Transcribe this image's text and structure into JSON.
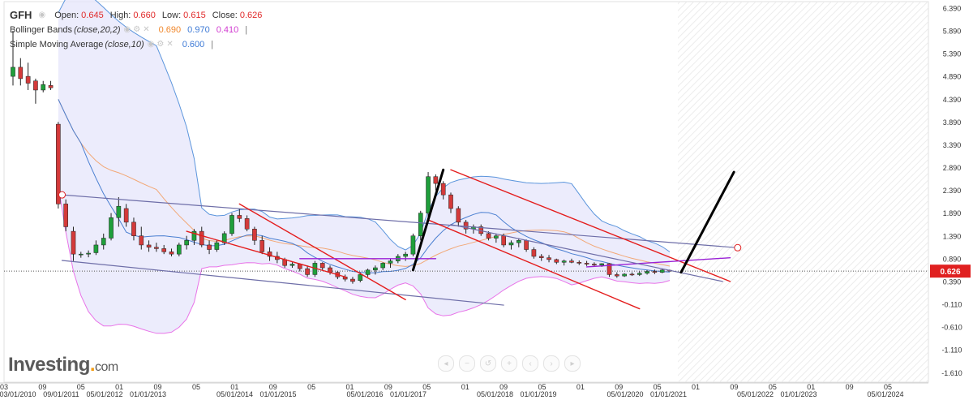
{
  "legend": {
    "ticker": "GFH",
    "open_label": "Open:",
    "open": "0.645",
    "high_label": "High:",
    "high": "0.660",
    "low_label": "Low:",
    "low": "0.615",
    "close_label": "Close:",
    "close": "0.626",
    "bb_name": "Bollinger Bands",
    "bb_params": "(close,20,2)",
    "bb_mid": "0.690",
    "bb_upper": "0.970",
    "bb_lower": "0.410",
    "sma_name": "Simple Moving Average",
    "sma_params": "(close,10)",
    "sma_value": "0.600",
    "pipe": "|"
  },
  "logo": {
    "text": "Investing",
    "dot": ".",
    "suffix": "com"
  },
  "price_badge": "0.626",
  "nav_icons": [
    "arrow-left-icon",
    "zoom-out-icon",
    "reset-icon",
    "zoom-in-icon",
    "scroll-left-icon",
    "scroll-right-icon",
    "arrow-right-icon"
  ],
  "colors": {
    "up": "#1f9f3b",
    "down": "#d43a3a",
    "bb_band": "#5b95dc",
    "bb_fill": "#e6e6fb",
    "bb_mid": "#f2a877",
    "bb_lower_right": "#e873e8",
    "sma": "#4a7fd1",
    "red_channel": "#e41d1d",
    "grey_channel": "#6e6ea8",
    "purple": "#9a21d6",
    "projection": "#000000",
    "badge": "#e02020"
  },
  "chart_data": {
    "type": "candlestick",
    "ylim": [
      -1.81,
      6.54
    ],
    "y_ticks": [
      "6.390",
      "5.890",
      "5.390",
      "4.890",
      "4.390",
      "3.890",
      "3.390",
      "2.890",
      "2.390",
      "1.890",
      "1.390",
      "0.890",
      "0.390",
      "-0.110",
      "-0.610",
      "-1.110",
      "-1.610"
    ],
    "x_ticks_top": [
      "03",
      "09",
      "05",
      "01",
      "09",
      "05",
      "01",
      "09",
      "05",
      "01",
      "09",
      "05",
      "01",
      "09",
      "05",
      "01",
      "09",
      "05",
      "01",
      "09",
      "05",
      "01",
      "09",
      "05"
    ],
    "x_ticks_bottom": [
      "03/01/2010",
      "09/01/2011",
      "05/01/2012",
      "01/01/2013",
      "",
      "05/01/2014",
      "01/01/2015",
      "",
      "05/01/2016",
      "01/01/2017",
      "",
      "05/01/2018",
      "01/01/2019",
      "",
      "05/01/2020",
      "01/01/2021",
      "",
      "05/01/2022",
      "01/01/2023",
      "",
      "05/01/2024"
    ],
    "last_close": 0.626,
    "candles": [
      [
        4.9,
        5.9,
        4.7,
        5.1
      ],
      [
        5.1,
        5.3,
        4.7,
        4.85
      ],
      [
        4.9,
        5.2,
        4.6,
        4.75
      ],
      [
        4.8,
        4.85,
        4.3,
        4.6
      ],
      [
        4.6,
        4.8,
        4.55,
        4.72
      ],
      [
        4.7,
        4.8,
        4.6,
        4.65
      ],
      [
        3.85,
        3.9,
        2.0,
        2.1
      ],
      [
        2.1,
        2.2,
        1.5,
        1.6
      ],
      [
        1.5,
        1.6,
        0.85,
        1.0
      ],
      [
        1.0,
        1.05,
        0.92,
        1.0
      ],
      [
        1.0,
        1.08,
        0.93,
        1.02
      ],
      [
        1.03,
        1.3,
        0.98,
        1.2
      ],
      [
        1.2,
        1.45,
        1.1,
        1.35
      ],
      [
        1.35,
        1.9,
        1.3,
        1.8
      ],
      [
        1.8,
        2.25,
        1.6,
        2.05
      ],
      [
        2.0,
        2.1,
        1.6,
        1.7
      ],
      [
        1.7,
        1.8,
        1.3,
        1.4
      ],
      [
        1.4,
        1.6,
        1.1,
        1.2
      ],
      [
        1.2,
        1.3,
        1.05,
        1.15
      ],
      [
        1.15,
        1.25,
        1.05,
        1.12
      ],
      [
        1.12,
        1.2,
        1.0,
        1.05
      ],
      [
        1.05,
        1.12,
        0.95,
        1.0
      ],
      [
        1.0,
        1.25,
        0.95,
        1.2
      ],
      [
        1.2,
        1.4,
        1.1,
        1.3
      ],
      [
        1.3,
        1.55,
        1.2,
        1.5
      ],
      [
        1.5,
        1.6,
        1.15,
        1.2
      ],
      [
        1.2,
        1.3,
        1.0,
        1.1
      ],
      [
        1.1,
        1.3,
        1.05,
        1.25
      ],
      [
        1.25,
        1.5,
        1.2,
        1.45
      ],
      [
        1.45,
        1.9,
        1.4,
        1.85
      ],
      [
        1.85,
        2.0,
        1.7,
        1.78
      ],
      [
        1.78,
        1.85,
        1.5,
        1.55
      ],
      [
        1.55,
        1.6,
        1.2,
        1.3
      ],
      [
        1.3,
        1.4,
        1.0,
        1.05
      ],
      [
        1.05,
        1.15,
        0.85,
        0.95
      ],
      [
        0.95,
        1.05,
        0.8,
        0.88
      ],
      [
        0.88,
        0.92,
        0.7,
        0.75
      ],
      [
        0.75,
        0.82,
        0.7,
        0.78
      ],
      [
        0.78,
        0.8,
        0.62,
        0.68
      ],
      [
        0.68,
        0.75,
        0.5,
        0.55
      ],
      [
        0.55,
        0.85,
        0.5,
        0.8
      ],
      [
        0.8,
        0.82,
        0.65,
        0.7
      ],
      [
        0.7,
        0.75,
        0.55,
        0.6
      ],
      [
        0.6,
        0.62,
        0.45,
        0.5
      ],
      [
        0.5,
        0.55,
        0.4,
        0.45
      ],
      [
        0.45,
        0.5,
        0.35,
        0.4
      ],
      [
        0.42,
        0.6,
        0.38,
        0.55
      ],
      [
        0.55,
        0.68,
        0.5,
        0.65
      ],
      [
        0.65,
        0.75,
        0.55,
        0.7
      ],
      [
        0.7,
        0.82,
        0.65,
        0.8
      ],
      [
        0.8,
        0.9,
        0.7,
        0.85
      ],
      [
        0.85,
        1.0,
        0.8,
        0.95
      ],
      [
        0.95,
        1.05,
        0.85,
        1.0
      ],
      [
        1.0,
        1.45,
        0.95,
        1.4
      ],
      [
        1.4,
        1.95,
        1.3,
        1.9
      ],
      [
        1.9,
        2.8,
        1.8,
        2.7
      ],
      [
        2.7,
        2.75,
        2.4,
        2.55
      ],
      [
        2.55,
        2.6,
        2.2,
        2.3
      ],
      [
        2.3,
        2.35,
        1.9,
        2.0
      ],
      [
        2.0,
        2.05,
        1.6,
        1.7
      ],
      [
        1.7,
        1.75,
        1.45,
        1.55
      ],
      [
        1.55,
        1.65,
        1.45,
        1.6
      ],
      [
        1.6,
        1.65,
        1.4,
        1.45
      ],
      [
        1.45,
        1.5,
        1.3,
        1.35
      ],
      [
        1.35,
        1.45,
        1.25,
        1.4
      ],
      [
        1.4,
        1.45,
        1.15,
        1.2
      ],
      [
        1.2,
        1.3,
        1.1,
        1.25
      ],
      [
        1.25,
        1.35,
        1.15,
        1.3
      ],
      [
        1.3,
        1.32,
        1.05,
        1.1
      ],
      [
        1.1,
        1.15,
        0.9,
        0.95
      ],
      [
        0.95,
        1.0,
        0.85,
        0.92
      ],
      [
        0.92,
        0.98,
        0.82,
        0.88
      ],
      [
        0.88,
        0.9,
        0.78,
        0.82
      ],
      [
        0.82,
        0.88,
        0.75,
        0.85
      ],
      [
        0.85,
        0.9,
        0.8,
        0.82
      ],
      [
        0.82,
        0.86,
        0.76,
        0.8
      ],
      [
        0.8,
        0.85,
        0.74,
        0.78
      ],
      [
        0.78,
        0.82,
        0.73,
        0.76
      ],
      [
        0.76,
        0.8,
        0.72,
        0.79
      ],
      [
        0.79,
        0.8,
        0.5,
        0.55
      ],
      [
        0.55,
        0.6,
        0.48,
        0.52
      ],
      [
        0.52,
        0.58,
        0.5,
        0.56
      ],
      [
        0.56,
        0.6,
        0.52,
        0.55
      ],
      [
        0.55,
        0.62,
        0.52,
        0.58
      ],
      [
        0.58,
        0.65,
        0.55,
        0.62
      ],
      [
        0.62,
        0.66,
        0.56,
        0.6
      ],
      [
        0.6,
        0.68,
        0.58,
        0.65
      ],
      [
        0.645,
        0.66,
        0.615,
        0.626
      ]
    ]
  }
}
